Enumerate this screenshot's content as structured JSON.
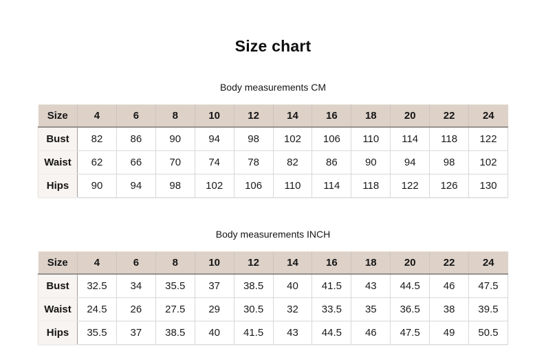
{
  "page_title": "Size chart",
  "colors": {
    "page_bg": "#ffffff",
    "header_bg": "#ddd1c8",
    "label_bg": "#f8f4f1",
    "grid_line": "#d8d8d8",
    "header_divider": "#95908b",
    "text": "#111111"
  },
  "tables": [
    {
      "subtitle": "Body measurements CM",
      "corner_label": "Size",
      "size_headers": [
        "4",
        "6",
        "8",
        "10",
        "12",
        "14",
        "16",
        "18",
        "20",
        "22",
        "24"
      ],
      "rows": [
        {
          "label": "Bust",
          "values": [
            "82",
            "86",
            "90",
            "94",
            "98",
            "102",
            "106",
            "110",
            "114",
            "118",
            "122"
          ]
        },
        {
          "label": "Waist",
          "values": [
            "62",
            "66",
            "70",
            "74",
            "78",
            "82",
            "86",
            "90",
            "94",
            "98",
            "102"
          ]
        },
        {
          "label": "Hips",
          "values": [
            "90",
            "94",
            "98",
            "102",
            "106",
            "110",
            "114",
            "118",
            "122",
            "126",
            "130"
          ]
        }
      ]
    },
    {
      "subtitle": "Body measurements INCH",
      "corner_label": "Size",
      "size_headers": [
        "4",
        "6",
        "8",
        "10",
        "12",
        "14",
        "16",
        "18",
        "20",
        "22",
        "24"
      ],
      "rows": [
        {
          "label": "Bust",
          "values": [
            "32.5",
            "34",
            "35.5",
            "37",
            "38.5",
            "40",
            "41.5",
            "43",
            "44.5",
            "46",
            "47.5"
          ]
        },
        {
          "label": "Waist",
          "values": [
            "24.5",
            "26",
            "27.5",
            "29",
            "30.5",
            "32",
            "33.5",
            "35",
            "36.5",
            "38",
            "39.5"
          ]
        },
        {
          "label": "Hips",
          "values": [
            "35.5",
            "37",
            "38.5",
            "40",
            "41.5",
            "43",
            "44.5",
            "46",
            "47.5",
            "49",
            "50.5"
          ]
        }
      ]
    }
  ]
}
